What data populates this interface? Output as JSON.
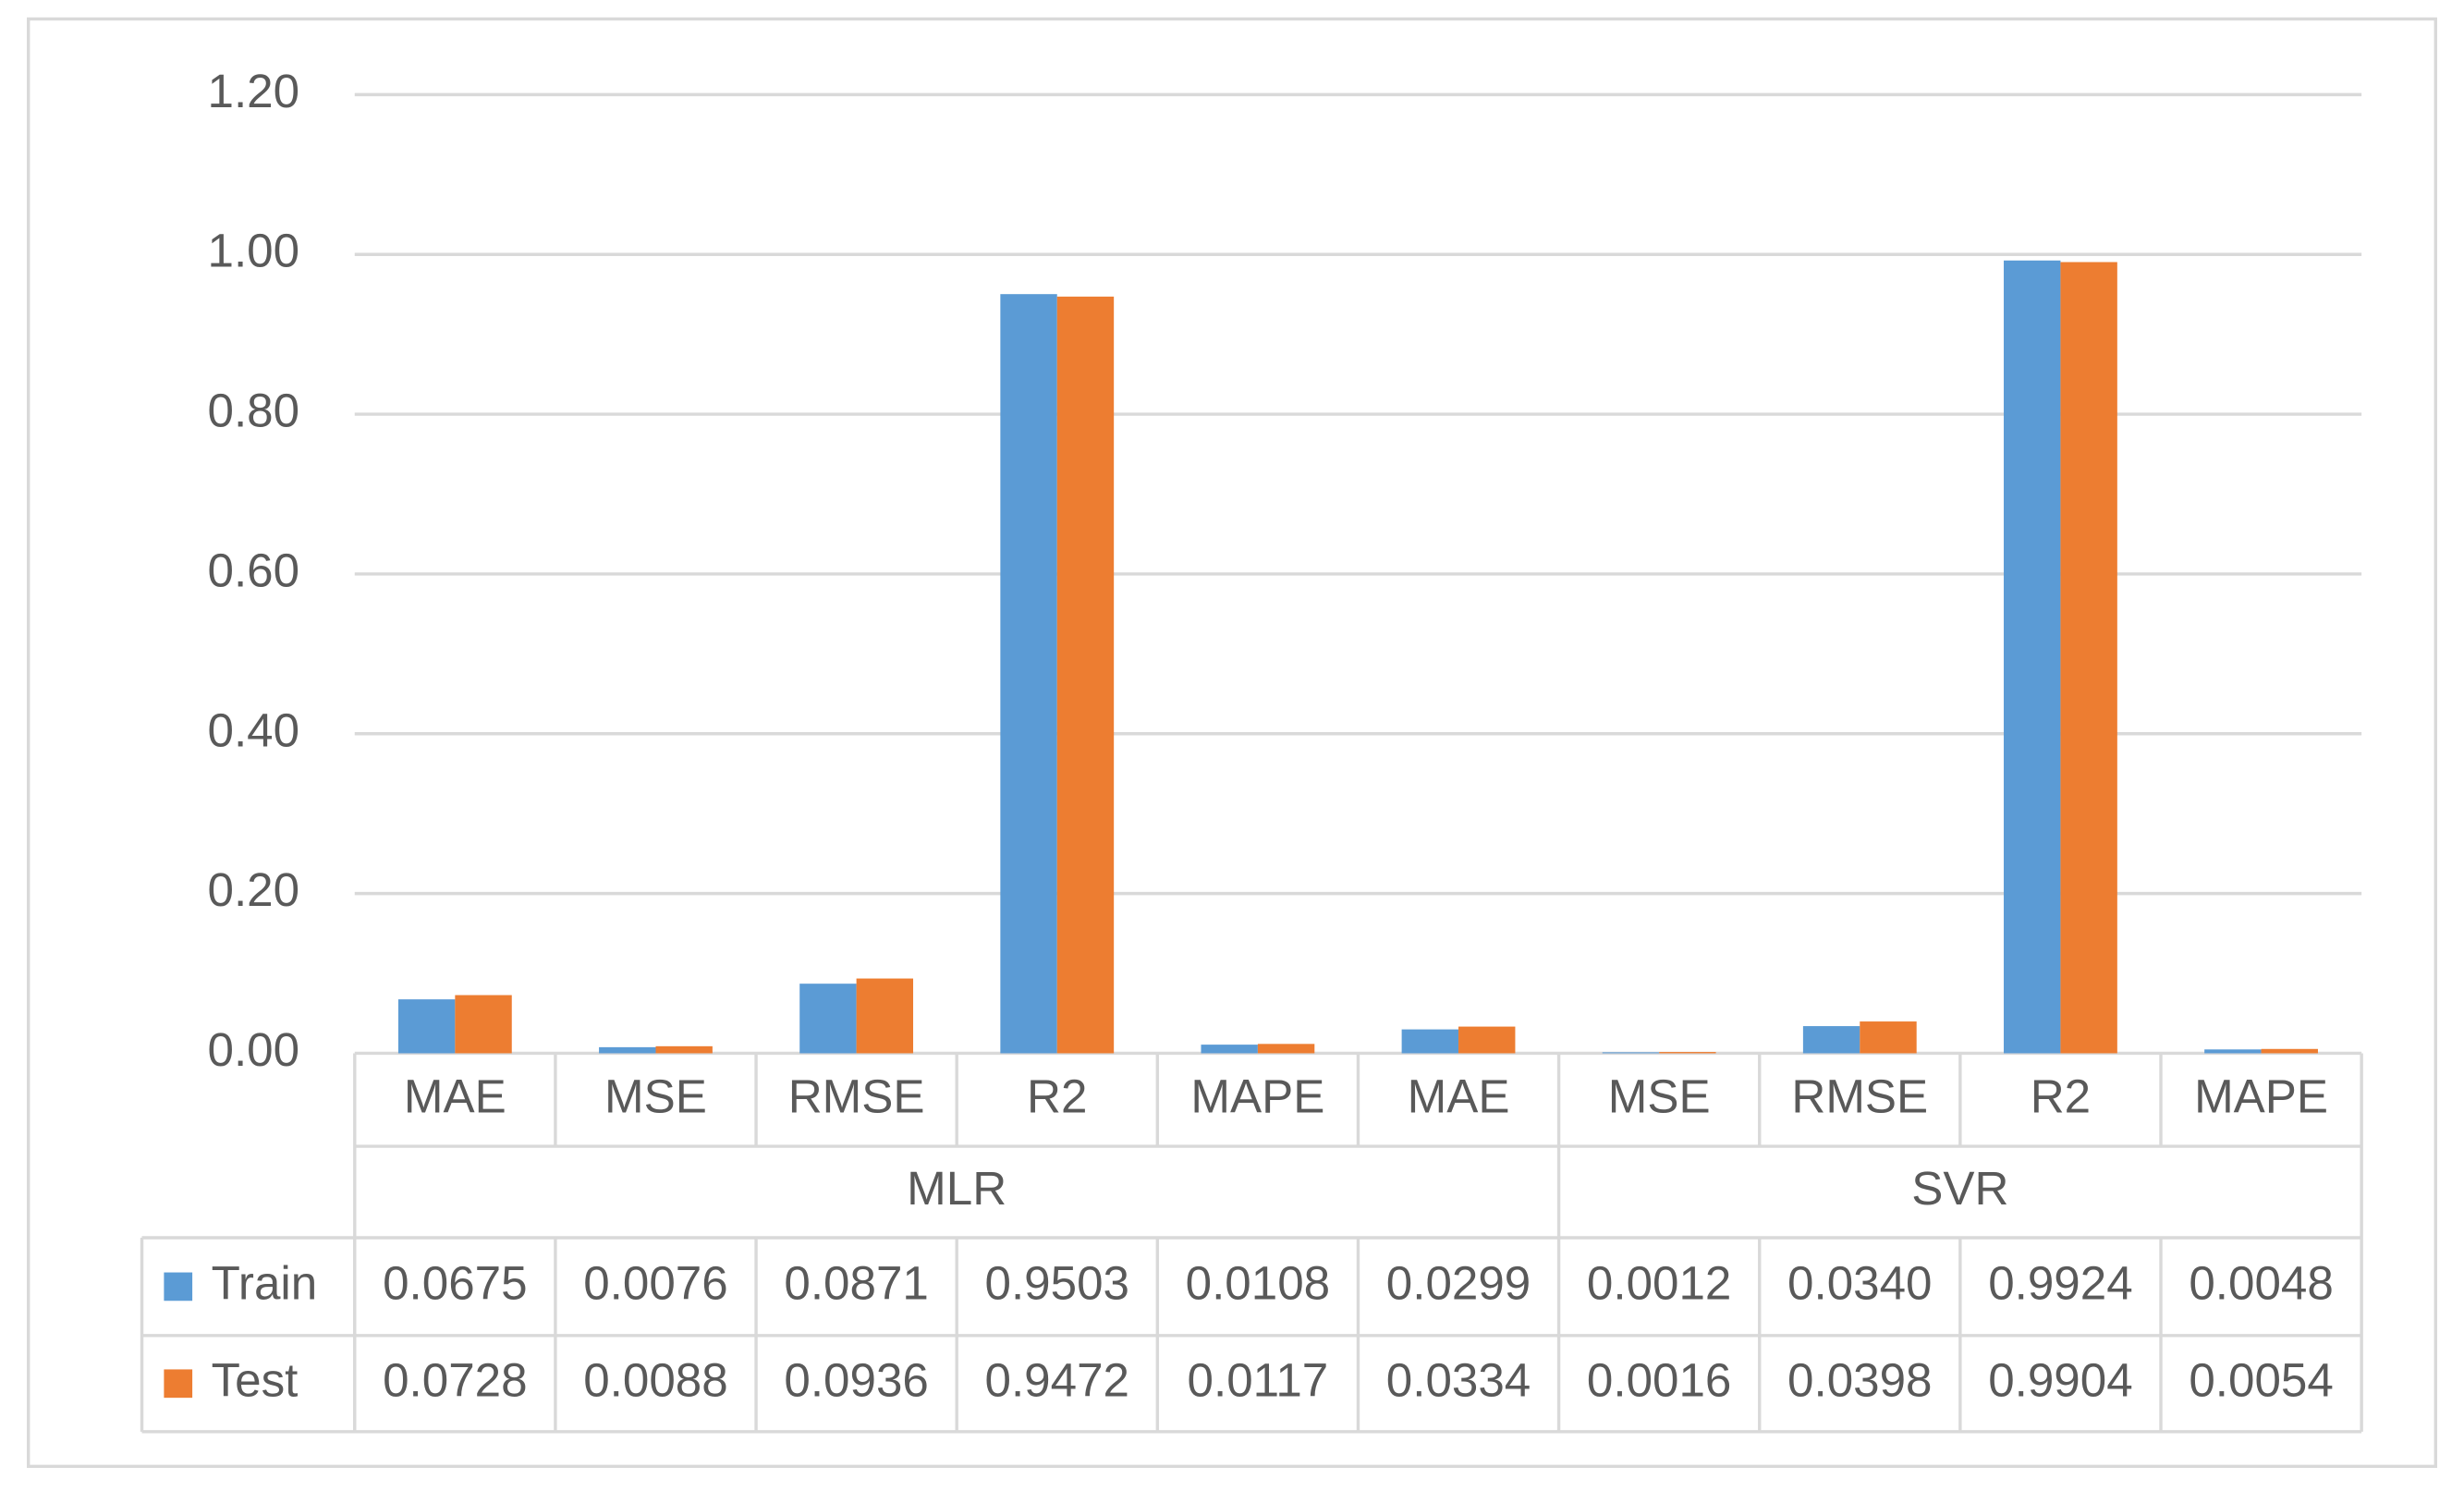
{
  "chart_data": {
    "type": "bar",
    "groups": [
      {
        "name": "MLR",
        "categories": [
          "MAE",
          "MSE",
          "RMSE",
          "R2",
          "MAPE",
          "MAE"
        ]
      },
      {
        "name": "SVR",
        "categories": [
          "MSE",
          "RMSE",
          "R2",
          "MAPE"
        ]
      }
    ],
    "series": [
      {
        "name": "Train",
        "color": "#5b9bd5",
        "values": [
          0.0675,
          0.0076,
          0.0871,
          0.9503,
          0.0108,
          0.0299,
          0.0012,
          0.034,
          0.9924,
          0.0048
        ],
        "value_labels": [
          "0.0675",
          "0.0076",
          "0.0871",
          "0.9503",
          "0.0108",
          "0.0299",
          "0.0012",
          "0.0340",
          "0.9924",
          "0.0048"
        ]
      },
      {
        "name": "Test",
        "color": "#ed7d31",
        "values": [
          0.0728,
          0.0088,
          0.0936,
          0.9472,
          0.0117,
          0.0334,
          0.0016,
          0.0398,
          0.9904,
          0.0054
        ],
        "value_labels": [
          "0.0728",
          "0.0088",
          "0.0936",
          "0.9472",
          "0.0117",
          "0.0334",
          "0.0016",
          "0.0398",
          "0.9904",
          "0.0054"
        ]
      }
    ],
    "ylim": [
      0,
      1.2
    ],
    "yticks": [
      {
        "value": 0,
        "label": "0.00"
      },
      {
        "value": 0.2,
        "label": "0.20"
      },
      {
        "value": 0.4,
        "label": "0.40"
      },
      {
        "value": 0.6,
        "label": "0.60"
      },
      {
        "value": 0.8,
        "label": "0.80"
      },
      {
        "value": 1,
        "label": "1.00"
      },
      {
        "value": 1.2,
        "label": "1.20"
      }
    ],
    "grid": true
  }
}
